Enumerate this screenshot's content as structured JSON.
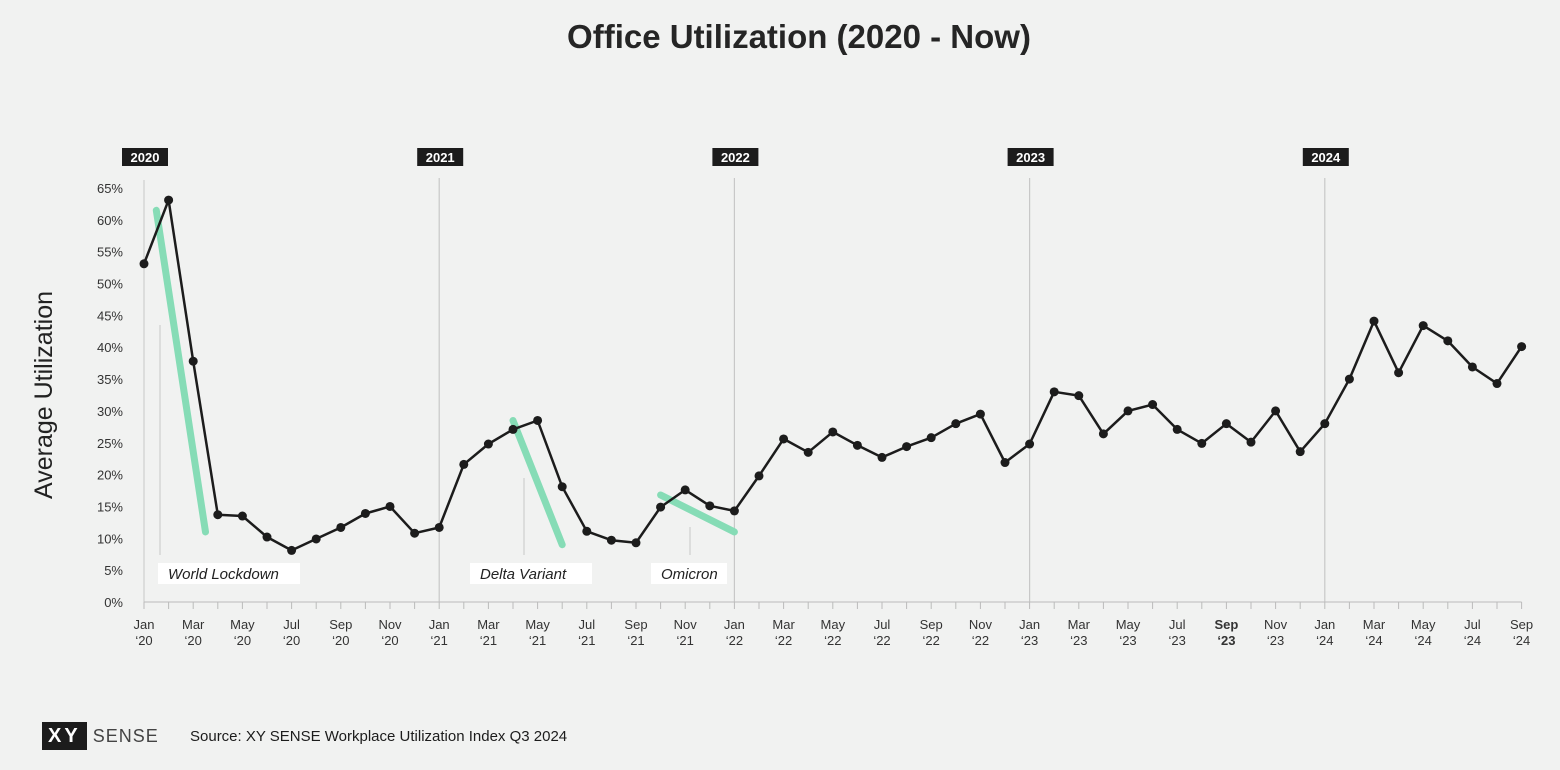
{
  "chart_data": {
    "type": "line",
    "title": "Office Utilization (2020 - Now)",
    "ylabel": "Average Utilization",
    "xlabel": "",
    "ylim": [
      0,
      65
    ],
    "yticks": [
      "0%",
      "5%",
      "10%",
      "15%",
      "20%",
      "25%",
      "30%",
      "35%",
      "40%",
      "45%",
      "50%",
      "55%",
      "60%",
      "65%"
    ],
    "x": [
      "2020-01",
      "2020-02",
      "2020-03",
      "2020-04",
      "2020-05",
      "2020-06",
      "2020-07",
      "2020-08",
      "2020-09",
      "2020-10",
      "2020-11",
      "2020-12",
      "2021-01",
      "2021-02",
      "2021-03",
      "2021-04",
      "2021-05",
      "2021-06",
      "2021-07",
      "2021-08",
      "2021-09",
      "2021-10",
      "2021-11",
      "2021-12",
      "2022-01",
      "2022-02",
      "2022-03",
      "2022-04",
      "2022-05",
      "2022-06",
      "2022-07",
      "2022-08",
      "2022-09",
      "2022-10",
      "2022-11",
      "2022-12",
      "2023-01",
      "2023-02",
      "2023-03",
      "2023-04",
      "2023-05",
      "2023-06",
      "2023-07",
      "2023-08",
      "2023-09",
      "2023-10",
      "2023-11",
      "2023-12",
      "2024-01",
      "2024-02",
      "2024-03",
      "2024-04",
      "2024-05",
      "2024-06",
      "2024-07",
      "2024-08",
      "2024-09"
    ],
    "series": [
      {
        "values": [
          53.1,
          63.1,
          37.8,
          13.7,
          13.5,
          10.2,
          8.1,
          9.9,
          11.7,
          13.9,
          15.0,
          10.8,
          11.7,
          21.6,
          24.8,
          27.1,
          28.5,
          18.1,
          11.1,
          9.7,
          9.3,
          14.9,
          17.6,
          15.1,
          14.3,
          19.8,
          25.6,
          23.5,
          26.7,
          24.6,
          22.7,
          24.4,
          25.8,
          28.0,
          29.5,
          21.9,
          24.8,
          33.0,
          32.4,
          26.4,
          30.0,
          31.0,
          27.1,
          24.9,
          28.0,
          25.1,
          30.0,
          23.6,
          28.0,
          35.0,
          44.1,
          36.0,
          43.4,
          41.0,
          36.9,
          34.3,
          40.1
        ]
      }
    ],
    "x_tick_labels": [
      {
        "m": "Jan",
        "y": "‘20"
      },
      {
        "m": "Mar",
        "y": "‘20"
      },
      {
        "m": "May",
        "y": "‘20"
      },
      {
        "m": "Jul",
        "y": "‘20"
      },
      {
        "m": "Sep",
        "y": "‘20"
      },
      {
        "m": "Nov",
        "y": "‘20"
      },
      {
        "m": "Jan",
        "y": "‘21"
      },
      {
        "m": "Mar",
        "y": "‘21"
      },
      {
        "m": "May",
        "y": "‘21"
      },
      {
        "m": "Jul",
        "y": "‘21"
      },
      {
        "m": "Sep",
        "y": "‘21"
      },
      {
        "m": "Nov",
        "y": "‘21"
      },
      {
        "m": "Jan",
        "y": "‘22"
      },
      {
        "m": "Mar",
        "y": "‘22"
      },
      {
        "m": "May",
        "y": "‘22"
      },
      {
        "m": "Jul",
        "y": "‘22"
      },
      {
        "m": "Sep",
        "y": "‘22"
      },
      {
        "m": "Nov",
        "y": "‘22"
      },
      {
        "m": "Jan",
        "y": "‘23"
      },
      {
        "m": "Mar",
        "y": "‘23"
      },
      {
        "m": "May",
        "y": "‘23"
      },
      {
        "m": "Jul",
        "y": "‘23"
      },
      {
        "m": "Sep",
        "y": "‘23",
        "bold": true
      },
      {
        "m": "Nov",
        "y": "‘23"
      },
      {
        "m": "Jan",
        "y": "‘24"
      },
      {
        "m": "Mar",
        "y": "‘24"
      },
      {
        "m": "May",
        "y": "‘24"
      },
      {
        "m": "Jul",
        "y": "‘24"
      },
      {
        "m": "Sep",
        "y": "‘24"
      }
    ],
    "year_markers": [
      {
        "label": "2020",
        "x": "2020-01"
      },
      {
        "label": "2021",
        "x": "2021-01"
      },
      {
        "label": "2022",
        "x": "2022-01"
      },
      {
        "label": "2023",
        "x": "2023-01"
      },
      {
        "label": "2024",
        "x": "2024-01"
      }
    ],
    "annotations": [
      {
        "label": "World Lockdown",
        "x_start": "2020-01.5",
        "y_start": 61.5,
        "x_end": "2020-03.5",
        "y_end": 11
      },
      {
        "label": "Delta Variant",
        "x_start": "2021-04",
        "y_start": 28.5,
        "x_end": "2021-06",
        "y_end": 9
      },
      {
        "label": "Omicron",
        "x_start": "2021-10",
        "y_start": 16.8,
        "x_end": "2022-01",
        "y_end": 11
      }
    ],
    "grid": false,
    "colors": {
      "line": "#1c1c1c",
      "annotation": "#86dcb6",
      "year_box": "#1c1c1c",
      "vline": "#c8c8c8",
      "background": "#f1f2f1"
    }
  },
  "footer": {
    "logo_mark": "XY",
    "logo_word": "SENSE",
    "source": "Source: XY SENSE Workplace Utilization Index Q3 2024"
  }
}
